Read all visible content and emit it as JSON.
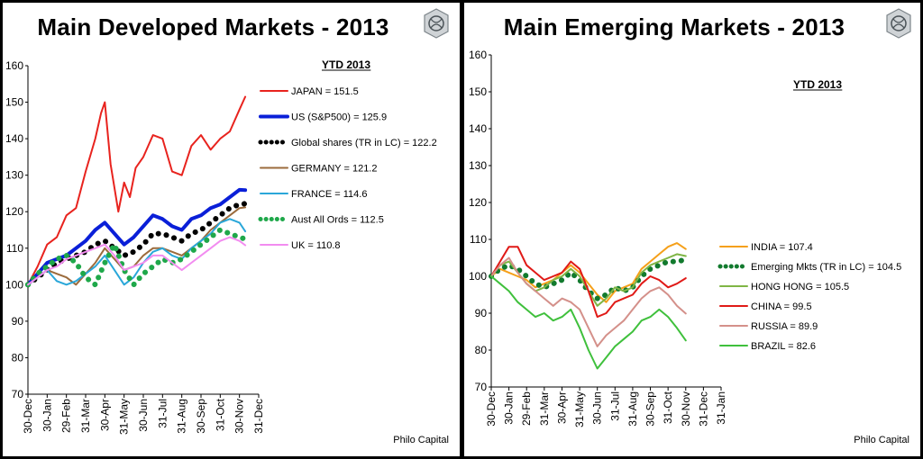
{
  "footer_text": "Philo Capital",
  "chart_data": [
    {
      "type": "line",
      "title": "Main Developed Markets - 2013",
      "legend_title": "YTD 2013",
      "legend_position": "top-right",
      "ylim": [
        70,
        160
      ],
      "yticks": [
        "70",
        "80",
        "90",
        "100",
        "110",
        "120",
        "130",
        "140",
        "150",
        "160"
      ],
      "xticks": [
        "30-Dec",
        "30-Jan",
        "29-Feb",
        "31-Mar",
        "30-Apr",
        "31-May",
        "30-Jun",
        "31-Jul",
        "31-Aug",
        "30-Sep",
        "31-Oct",
        "30-Nov",
        "31-Dec"
      ],
      "xlabel": "",
      "ylabel": "",
      "grid": false,
      "series": [
        {
          "name": "JAPAN  =  151.5",
          "color": "#e8231e",
          "style": "solid",
          "x": [
            0,
            0.5,
            1,
            1.5,
            2,
            2.5,
            3,
            3.5,
            3.8,
            4.0,
            4.3,
            4.7,
            5.0,
            5.3,
            5.6,
            6.0,
            6.5,
            7.0,
            7.5,
            8.0,
            8.5,
            9.0,
            9.5,
            10.0,
            10.5,
            11.0,
            11.3
          ],
          "values": [
            100,
            105,
            111,
            113,
            119,
            121,
            131,
            140,
            147,
            150,
            133,
            120,
            128,
            124,
            132,
            135,
            141,
            140,
            131,
            130,
            138,
            141,
            137,
            140,
            142,
            148,
            151.5
          ]
        },
        {
          "name": "US (S&P500)  =  125.9",
          "color": "#0a1fd8",
          "style": "thick",
          "x": [
            0,
            0.5,
            1,
            1.5,
            2,
            2.5,
            3,
            3.5,
            4.0,
            4.5,
            5.0,
            5.5,
            6.0,
            6.5,
            7.0,
            7.5,
            8.0,
            8.5,
            9.0,
            9.5,
            10.0,
            10.5,
            11.0,
            11.3
          ],
          "values": [
            100,
            103,
            106,
            107,
            108,
            110,
            112,
            115,
            117,
            114,
            111,
            113,
            116,
            119,
            118,
            116,
            115,
            118,
            119,
            121,
            122,
            124,
            126,
            125.9
          ]
        },
        {
          "name": "Global shares (TR in LC)  =  122.2",
          "color": "#000000",
          "style": "dotted",
          "x": [
            0,
            0.5,
            1,
            1.5,
            2,
            2.5,
            3,
            3.5,
            4.0,
            4.5,
            5.0,
            5.5,
            6.0,
            6.5,
            7.0,
            7.5,
            8.0,
            8.5,
            9.0,
            9.5,
            10.0,
            10.5,
            11.0,
            11.3
          ],
          "values": [
            100,
            102,
            104,
            106,
            107,
            108,
            109,
            111,
            112,
            110,
            108,
            109,
            111,
            114,
            114,
            113,
            112,
            114,
            115,
            117,
            119,
            121,
            122,
            122.2
          ]
        },
        {
          "name": "GERMANY  =  121.2",
          "color": "#9b6b3c",
          "style": "solid",
          "x": [
            0,
            0.5,
            1,
            1.5,
            2,
            2.5,
            3,
            3.5,
            4.0,
            4.5,
            5.0,
            5.5,
            6.0,
            6.5,
            7.0,
            7.5,
            8.0,
            8.5,
            9.0,
            9.5,
            10.0,
            10.5,
            11.0,
            11.3
          ],
          "values": [
            100,
            102,
            104,
            103,
            102,
            100,
            103,
            106,
            110,
            107,
            104,
            105,
            108,
            110,
            110,
            109,
            108,
            110,
            112,
            115,
            117,
            119,
            121,
            121.2
          ]
        },
        {
          "name": "FRANCE  =  114.6",
          "color": "#2aa7d9",
          "style": "solid",
          "x": [
            0,
            0.5,
            1,
            1.5,
            2,
            2.5,
            3,
            3.5,
            4.0,
            4.5,
            5.0,
            5.5,
            6.0,
            6.5,
            7.0,
            7.5,
            8.0,
            8.5,
            9.0,
            9.5,
            10.0,
            10.5,
            11.0,
            11.3
          ],
          "values": [
            100,
            102,
            104,
            101,
            100,
            101,
            103,
            105,
            108,
            104,
            100,
            102,
            106,
            109,
            110,
            108,
            107,
            110,
            112,
            114,
            117,
            118,
            117,
            114.6
          ]
        },
        {
          "name": "Aust All Ords  =  112.5",
          "color": "#1fa84a",
          "style": "dotted",
          "x": [
            0,
            0.5,
            1,
            1.5,
            2,
            2.5,
            3,
            3.5,
            4.0,
            4.5,
            5.0,
            5.5,
            6.0,
            6.5,
            7.0,
            7.5,
            8.0,
            8.5,
            9.0,
            9.5,
            10.0,
            10.5,
            11.0,
            11.3
          ],
          "values": [
            100,
            103,
            105,
            107,
            108,
            106,
            102,
            100,
            106,
            111,
            104,
            100,
            103,
            105,
            107,
            106,
            107,
            109,
            111,
            113,
            115,
            114,
            113,
            112.5
          ]
        },
        {
          "name": "UK  =  110.8",
          "color": "#f28cf0",
          "style": "solid",
          "x": [
            0,
            0.5,
            1,
            1.5,
            2,
            2.5,
            3,
            3.5,
            4.0,
            4.5,
            5.0,
            5.5,
            6.0,
            6.5,
            7.0,
            7.5,
            8.0,
            8.5,
            9.0,
            9.5,
            10.0,
            10.5,
            11.0,
            11.3
          ],
          "values": [
            100,
            102,
            104,
            105,
            107,
            108,
            109,
            110,
            111,
            108,
            104,
            105,
            106,
            108,
            108,
            106,
            104,
            106,
            108,
            110,
            112,
            113,
            112,
            110.8
          ]
        }
      ]
    },
    {
      "type": "line",
      "title": "Main Emerging Markets - 2013",
      "legend_title": "YTD 2013",
      "legend_position": "right",
      "ylim": [
        70,
        160
      ],
      "yticks": [
        "70",
        "80",
        "90",
        "100",
        "110",
        "120",
        "130",
        "140",
        "150",
        "160"
      ],
      "xticks": [
        "30-Dec",
        "30-Jan",
        "29-Feb",
        "31-Mar",
        "30-Apr",
        "31-May",
        "30-Jun",
        "31-Jul",
        "31-Aug",
        "30-Sep",
        "31-Oct",
        "30-Nov",
        "31-Dec",
        "31-Jan"
      ],
      "xlabel": "",
      "ylabel": "",
      "grid": false,
      "series": [
        {
          "name": "INDIA  =  107.4",
          "color": "#f5a01a",
          "style": "solid",
          "x": [
            0,
            0.5,
            1,
            1.5,
            2,
            2.5,
            3,
            3.5,
            4.0,
            4.5,
            5.0,
            5.5,
            6.0,
            6.5,
            7.0,
            7.5,
            8.0,
            8.5,
            9.0,
            9.5,
            10.0,
            10.5,
            11.0
          ],
          "values": [
            100,
            102,
            101,
            100,
            99,
            97,
            98,
            99,
            101,
            103,
            101,
            98,
            95,
            93,
            96,
            97,
            98,
            102,
            104,
            106,
            108,
            109,
            107.4
          ]
        },
        {
          "name": "Emerging Mkts (TR in LC)  =  104.5",
          "color": "#127a2e",
          "style": "dotted",
          "x": [
            0,
            0.5,
            1,
            1.5,
            2,
            2.5,
            3,
            3.5,
            4.0,
            4.5,
            5.0,
            5.5,
            6.0,
            6.5,
            7.0,
            7.5,
            8.0,
            8.5,
            9.0,
            9.5,
            10.0,
            10.5,
            11.0
          ],
          "values": [
            100,
            102,
            103,
            102,
            100,
            98,
            97,
            98,
            99,
            101,
            99,
            96,
            94,
            95,
            97,
            96,
            97,
            100,
            102,
            103,
            104,
            104,
            104.5
          ]
        },
        {
          "name": "HONG HONG  =  105.5",
          "color": "#7fb545",
          "style": "solid",
          "x": [
            0,
            0.5,
            1,
            1.5,
            2,
            2.5,
            3,
            3.5,
            4.0,
            4.5,
            5.0,
            5.5,
            6.0,
            6.5,
            7.0,
            7.5,
            8.0,
            8.5,
            9.0,
            9.5,
            10.0,
            10.5,
            11.0
          ],
          "values": [
            100,
            103,
            104,
            101,
            98,
            96,
            97,
            99,
            100,
            102,
            100,
            96,
            92,
            94,
            97,
            96,
            97,
            101,
            103,
            104,
            105,
            106,
            105.5
          ]
        },
        {
          "name": "CHINA  =  99.5",
          "color": "#e01a17",
          "style": "solid",
          "x": [
            0,
            0.5,
            1,
            1.5,
            2,
            2.5,
            3,
            3.5,
            4.0,
            4.5,
            5.0,
            5.5,
            6.0,
            6.5,
            7.0,
            7.5,
            8.0,
            8.5,
            9.0,
            9.5,
            10.0,
            10.5,
            11.0
          ],
          "values": [
            100,
            104,
            108,
            108,
            103,
            101,
            99,
            100,
            101,
            104,
            102,
            96,
            89,
            90,
            93,
            94,
            95,
            98,
            100,
            99,
            97,
            98,
            99.5
          ]
        },
        {
          "name": "RUSSIA  =  89.9",
          "color": "#d4908a",
          "style": "solid",
          "x": [
            0,
            0.5,
            1,
            1.5,
            2,
            2.5,
            3,
            3.5,
            4.0,
            4.5,
            5.0,
            5.5,
            6.0,
            6.5,
            7.0,
            7.5,
            8.0,
            8.5,
            9.0,
            9.5,
            10.0,
            10.5,
            11.0
          ],
          "values": [
            100,
            103,
            105,
            101,
            98,
            96,
            94,
            92,
            94,
            93,
            91,
            86,
            81,
            84,
            86,
            88,
            91,
            94,
            96,
            97,
            95,
            92,
            89.9
          ]
        },
        {
          "name": "BRAZIL  =  82.6",
          "color": "#3fc03c",
          "style": "solid",
          "x": [
            0,
            0.5,
            1,
            1.5,
            2,
            2.5,
            3,
            3.5,
            4.0,
            4.5,
            5.0,
            5.5,
            6.0,
            6.5,
            7.0,
            7.5,
            8.0,
            8.5,
            9.0,
            9.5,
            10.0,
            10.5,
            11.0
          ],
          "values": [
            100,
            98,
            96,
            93,
            91,
            89,
            90,
            88,
            89,
            91,
            86,
            80,
            75,
            78,
            81,
            83,
            85,
            88,
            89,
            91,
            89,
            86,
            82.6
          ]
        }
      ]
    }
  ]
}
